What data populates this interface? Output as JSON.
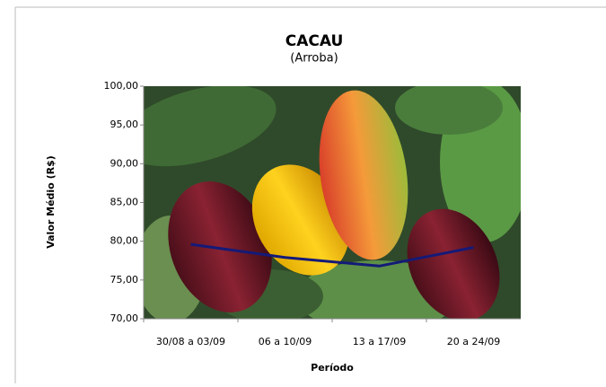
{
  "chart_data": {
    "type": "line",
    "title": "CACAU",
    "subtitle": "(Arroba)",
    "x_label": "Período",
    "y_label": "Valor Médio (R$)",
    "categories": [
      "30/08 a 03/09",
      "06 a 10/09",
      "13 a 17/09",
      "20 a 24/09"
    ],
    "series": [
      {
        "color": "#141a78",
        "values": [
          79.6,
          77.9,
          76.8,
          79.2
        ]
      }
    ],
    "ylim": [
      70,
      100
    ],
    "yticks": [
      {
        "value": 70,
        "label": "70,00"
      },
      {
        "value": 75,
        "label": "75,00"
      },
      {
        "value": 80,
        "label": "80,00"
      },
      {
        "value": 85,
        "label": "85,00"
      },
      {
        "value": 90,
        "label": "90,00"
      },
      {
        "value": 95,
        "label": "95,00"
      },
      {
        "value": 100,
        "label": "100,00"
      }
    ],
    "grid": false
  }
}
